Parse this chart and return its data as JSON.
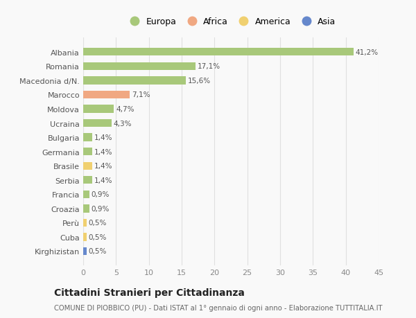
{
  "categories": [
    "Albania",
    "Romania",
    "Macedonia d/N.",
    "Marocco",
    "Moldova",
    "Ucraina",
    "Bulgaria",
    "Germania",
    "Brasile",
    "Serbia",
    "Francia",
    "Croazia",
    "Perù",
    "Cuba",
    "Kirghizistan"
  ],
  "values": [
    41.2,
    17.1,
    15.6,
    7.1,
    4.7,
    4.3,
    1.4,
    1.4,
    1.4,
    1.4,
    0.9,
    0.9,
    0.5,
    0.5,
    0.5
  ],
  "labels": [
    "41,2%",
    "17,1%",
    "15,6%",
    "7,1%",
    "4,7%",
    "4,3%",
    "1,4%",
    "1,4%",
    "1,4%",
    "1,4%",
    "0,9%",
    "0,9%",
    "0,5%",
    "0,5%",
    "0,5%"
  ],
  "continents": [
    "Europa",
    "Europa",
    "Europa",
    "Africa",
    "Europa",
    "Europa",
    "Europa",
    "Europa",
    "America",
    "Europa",
    "Europa",
    "Europa",
    "America",
    "America",
    "Asia"
  ],
  "colors": {
    "Europa": "#a8c87a",
    "Africa": "#f0a882",
    "America": "#f0d070",
    "Asia": "#6688cc"
  },
  "legend_order": [
    "Europa",
    "Africa",
    "America",
    "Asia"
  ],
  "xlim": [
    0,
    45
  ],
  "xticks": [
    0,
    5,
    10,
    15,
    20,
    25,
    30,
    35,
    40,
    45
  ],
  "title": "Cittadini Stranieri per Cittadinanza",
  "subtitle": "COMUNE DI PIOBBICO (PU) - Dati ISTAT al 1° gennaio di ogni anno - Elaborazione TUTTITALIA.IT",
  "bg_color": "#f9f9f9",
  "grid_color": "#e0e0e0"
}
